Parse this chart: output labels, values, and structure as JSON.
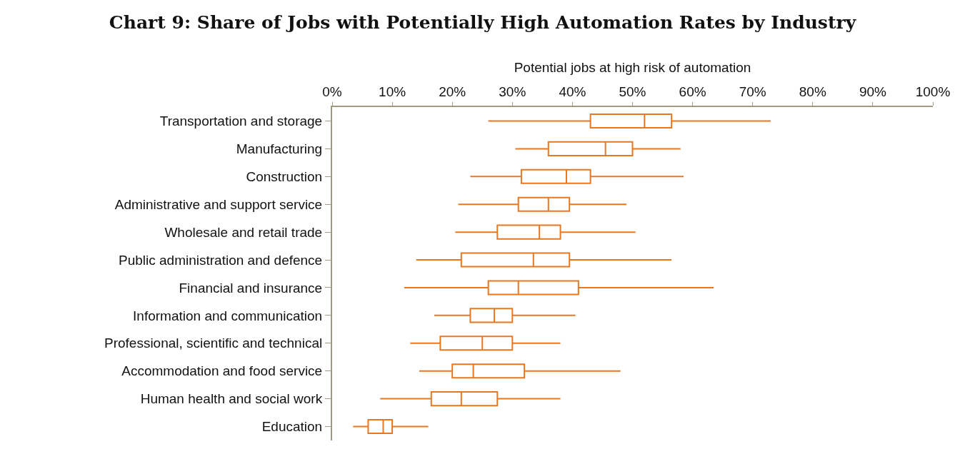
{
  "chart_data": {
    "type": "box",
    "orientation": "horizontal",
    "title": "Chart 9: Share of Jobs with Potentially High Automation Rates by Industry",
    "xlabel": "Potential jobs at high risk of automation",
    "categories": [
      "Transportation and storage",
      "Manufacturing",
      "Construction",
      "Administrative and support service",
      "Wholesale and retail trade",
      "Public administration and defence",
      "Financial and insurance",
      "Information and communication",
      "Professional, scientific and technical",
      "Accommodation and food service",
      "Human health and social work",
      "Education"
    ],
    "color": "#e87722",
    "boxes": [
      {
        "low": 26,
        "q1": 43,
        "median": 52,
        "q3": 56.5,
        "high": 73
      },
      {
        "low": 30.5,
        "q1": 36,
        "median": 45.5,
        "q3": 50,
        "high": 58
      },
      {
        "low": 23,
        "q1": 31.5,
        "median": 39,
        "q3": 43,
        "high": 58.5
      },
      {
        "low": 21,
        "q1": 31,
        "median": 36,
        "q3": 39.5,
        "high": 49
      },
      {
        "low": 20.5,
        "q1": 27.5,
        "median": 34.5,
        "q3": 38,
        "high": 50.5
      },
      {
        "low": 14,
        "q1": 21.5,
        "median": 33.5,
        "q3": 39.5,
        "high": 56.5
      },
      {
        "low": 12,
        "q1": 26,
        "median": 31,
        "q3": 41,
        "high": 63.5
      },
      {
        "low": 17,
        "q1": 23,
        "median": 27,
        "q3": 30,
        "high": 40.5
      },
      {
        "low": 13,
        "q1": 18,
        "median": 25,
        "q3": 30,
        "high": 38
      },
      {
        "low": 14.5,
        "q1": 20,
        "median": 23.5,
        "q3": 32,
        "high": 48
      },
      {
        "low": 8,
        "q1": 16.5,
        "median": 21.5,
        "q3": 27.5,
        "high": 38
      },
      {
        "low": 3.5,
        "q1": 6,
        "median": 8.5,
        "q3": 10,
        "high": 16
      }
    ],
    "xlim": [
      0,
      100
    ],
    "xticks": [
      {
        "value": 0,
        "label": "0%"
      },
      {
        "value": 10,
        "label": "10%"
      },
      {
        "value": 20,
        "label": "20%"
      },
      {
        "value": 30,
        "label": "30%"
      },
      {
        "value": 40,
        "label": "40%"
      },
      {
        "value": 50,
        "label": "50%"
      },
      {
        "value": 60,
        "label": "60%"
      },
      {
        "value": 70,
        "label": "70%"
      },
      {
        "value": 80,
        "label": "80%"
      },
      {
        "value": 90,
        "label": "90%"
      },
      {
        "value": 100,
        "label": "100%"
      }
    ],
    "grid": false
  }
}
